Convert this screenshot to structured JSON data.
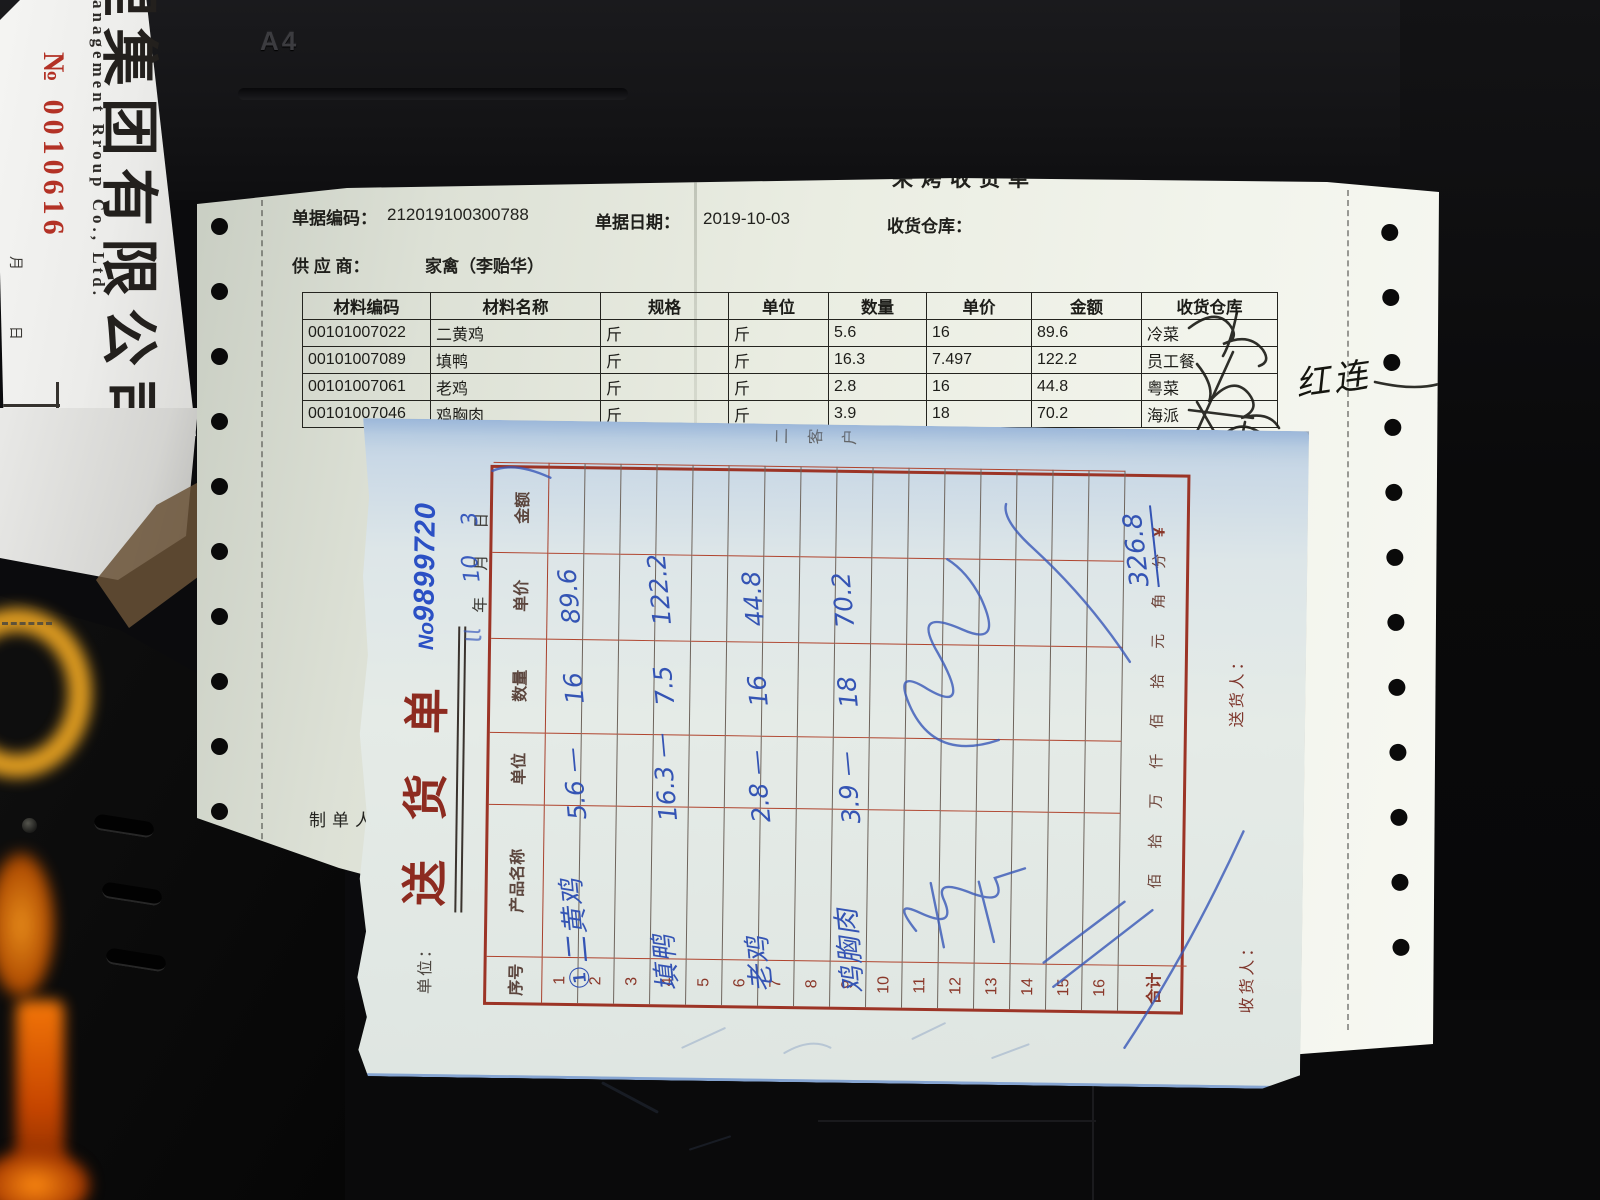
{
  "background": {
    "printer_label": "A4"
  },
  "left_document": {
    "company_cn": "理集团有限公司",
    "company_en": "anagement Rroup Co., Ltd.",
    "serial": "№ 0010616",
    "date_chars": "月 日"
  },
  "receipt": {
    "partial_title": "来烤收货单",
    "doc_no_label": "单据编码：",
    "doc_no": "212019100300788",
    "date_label": "单据日期：",
    "date": "2019-10-03",
    "warehouse_label": "收货仓库：",
    "supplier_label": "供 应 商：",
    "supplier": "家禽（李贻华）",
    "maker_label": "制单人",
    "annotation": "红连",
    "table": {
      "headers": [
        "材料编码",
        "材料名称",
        "规格",
        "单位",
        "数量",
        "单价",
        "金额",
        "收货仓库"
      ],
      "rows": [
        [
          "00101007022",
          "二黄鸡",
          "斤",
          "斤",
          "5.6",
          "16",
          "89.6",
          "冷菜"
        ],
        [
          "00101007089",
          "填鸭",
          "斤",
          "斤",
          "16.3",
          "7.497",
          "122.2",
          "员工餐"
        ],
        [
          "00101007061",
          "老鸡",
          "斤",
          "斤",
          "2.8",
          "16",
          "44.8",
          "粤菜"
        ],
        [
          "00101007046",
          "鸡胸肉",
          "斤",
          "斤",
          "3.9",
          "18",
          "70.2",
          "海派"
        ]
      ]
    }
  },
  "delivery_note": {
    "unit_label": "单位：",
    "title": "送货单",
    "no_prefix": "No",
    "no_digits": "9899720",
    "year_char": "年",
    "month_char": "月",
    "day_char": "日",
    "hw_month": "10",
    "hw_day": "3",
    "copy_label": "二客户",
    "table": {
      "headers": [
        "序号",
        "产品名称",
        "单位",
        "数量",
        "单价",
        "金额"
      ],
      "row_count": 16,
      "total_label": "合计",
      "amount_units": [
        "佰",
        "拾",
        "万",
        "仟",
        "佰",
        "拾",
        "元",
        "角",
        "分"
      ],
      "currency_symbol": "¥"
    },
    "entries": [
      {
        "name": "①二黄鸡",
        "qty": "5.6 —",
        "price": "16",
        "amount": "89.6"
      },
      {
        "name": "填鸭",
        "qty": "16.3 —",
        "price": "7.5",
        "amount": "122.2"
      },
      {
        "name": "老鸡",
        "qty": "2.8 —",
        "price": "16",
        "amount": "44.8"
      },
      {
        "name": "鸡胸肉",
        "qty": "3.9 —",
        "price": "18",
        "amount": "70.2"
      }
    ],
    "total_amount": "326.8",
    "receiver_label": "收货人：",
    "sender_label": "送货人："
  }
}
